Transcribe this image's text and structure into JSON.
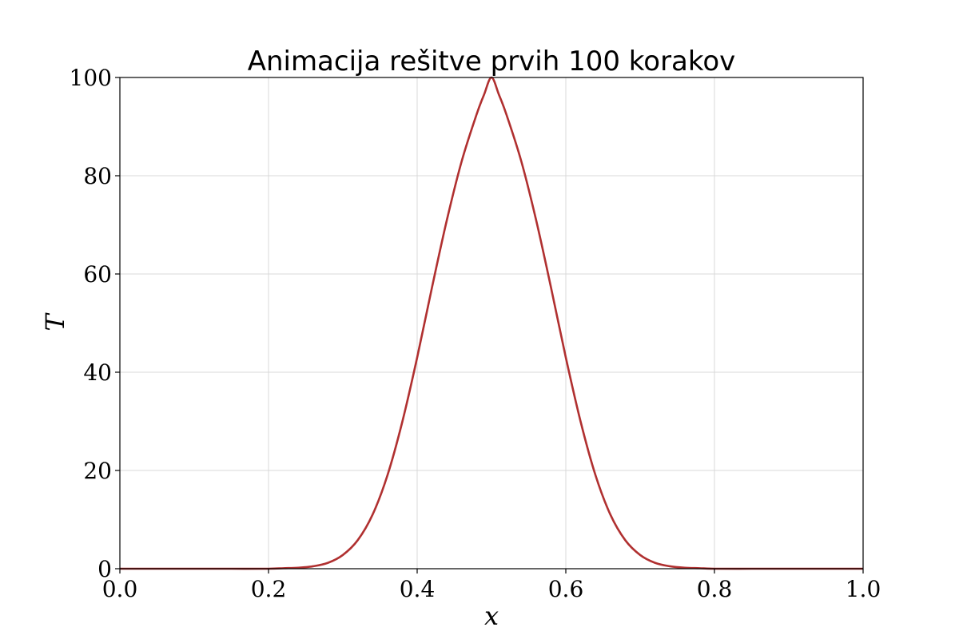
{
  "chart_data": {
    "type": "line",
    "title": "Animacija rešitve prvih 100 korakov",
    "xlabel": "x",
    "ylabel": "T",
    "xlim": [
      0.0,
      1.0
    ],
    "ylim": [
      0,
      100
    ],
    "xticks": [
      0.0,
      0.2,
      0.4,
      0.6,
      0.8,
      1.0
    ],
    "xtick_labels": [
      "0.0",
      "0.2",
      "0.4",
      "0.6",
      "0.8",
      "1.0"
    ],
    "yticks": [
      0,
      20,
      40,
      60,
      80,
      100
    ],
    "ytick_labels": [
      "0",
      "20",
      "40",
      "60",
      "80",
      "100"
    ],
    "grid": true,
    "series": [
      {
        "color": "#b03030",
        "x": [
          0.0,
          0.05,
          0.1,
          0.15,
          0.2,
          0.22,
          0.24,
          0.26,
          0.28,
          0.3,
          0.32,
          0.34,
          0.36,
          0.38,
          0.4,
          0.42,
          0.44,
          0.46,
          0.48,
          0.49,
          0.5,
          0.51,
          0.52,
          0.54,
          0.56,
          0.58,
          0.6,
          0.62,
          0.64,
          0.66,
          0.68,
          0.7,
          0.72,
          0.74,
          0.76,
          0.78,
          0.8,
          0.85,
          0.9,
          0.95,
          1.0
        ],
        "y": [
          0.0,
          0.0,
          0.0,
          0.0,
          0.0,
          0.1,
          0.2,
          0.5,
          1.2,
          2.8,
          5.8,
          11.0,
          19.0,
          29.9,
          43.0,
          57.3,
          71.0,
          83.0,
          92.5,
          96.5,
          100.0,
          96.5,
          92.5,
          83.0,
          71.0,
          57.3,
          43.0,
          29.9,
          19.0,
          11.0,
          5.8,
          2.8,
          1.2,
          0.5,
          0.2,
          0.1,
          0.0,
          0.0,
          0.0,
          0.0,
          0.0
        ]
      }
    ]
  }
}
